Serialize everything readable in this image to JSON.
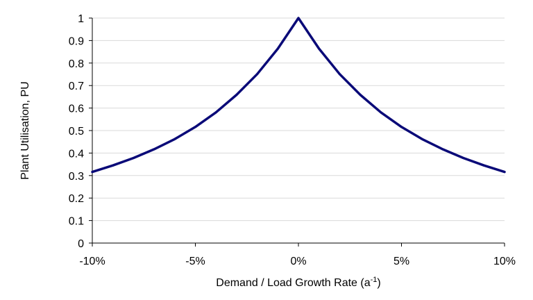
{
  "chart_data": {
    "type": "line",
    "title": "",
    "xlabel": "Demand / Load Growth Rate (a",
    "xlabel_superscript": "-1",
    "xlabel_suffix": ")",
    "ylabel": "Plant Utilisation, PU",
    "xlim": [
      -10,
      10
    ],
    "ylim": [
      0,
      1
    ],
    "x_ticks": [
      -10,
      -5,
      0,
      5,
      10
    ],
    "x_tick_labels": [
      "-10%",
      "-5%",
      "0%",
      "5%",
      "10%"
    ],
    "y_ticks": [
      0,
      0.1,
      0.2,
      0.3,
      0.4,
      0.5,
      0.6,
      0.7,
      0.8,
      0.9,
      1
    ],
    "y_tick_labels": [
      "0",
      "0.1",
      "0.2",
      "0.3",
      "0.4",
      "0.5",
      "0.6",
      "0.7",
      "0.8",
      "0.9",
      "1"
    ],
    "grid": "horizontal",
    "legend": "none",
    "line_color": "#0a0a78",
    "series": [
      {
        "x": [
          -10,
          -9,
          -8,
          -7,
          -6,
          -5,
          -4,
          -3,
          -2,
          -1,
          0,
          1,
          2,
          3,
          4,
          5,
          6,
          7,
          8,
          9,
          10
        ],
        "values": [
          0.316,
          0.345,
          0.378,
          0.417,
          0.462,
          0.516,
          0.581,
          0.659,
          0.751,
          0.864,
          1.0,
          0.864,
          0.751,
          0.659,
          0.581,
          0.516,
          0.462,
          0.417,
          0.378,
          0.345,
          0.316
        ]
      }
    ]
  }
}
